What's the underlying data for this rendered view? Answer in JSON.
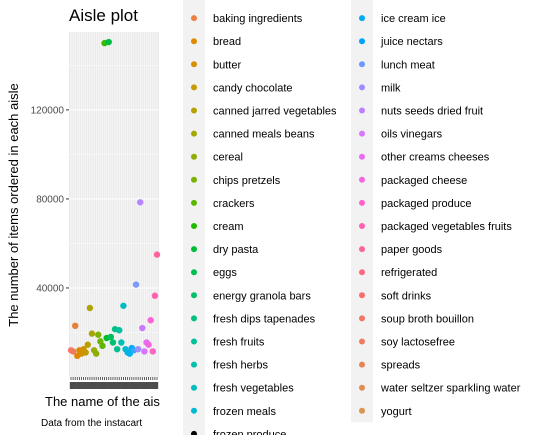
{
  "chart_data": {
    "type": "scatter",
    "title": "Aisle plot",
    "xlabel": "The name of the ais",
    "ylabel": "The number of items ordered in each aisle",
    "caption": "Data from the instacart",
    "yticks": [
      40000,
      80000,
      120000
    ],
    "ytick_labels": [
      "40000",
      "80000",
      "120000"
    ],
    "ylim": [
      0,
      155000
    ],
    "grid": true,
    "panel_background": "#EBEBEB",
    "legend_position": "right",
    "legend_columns": [
      [
        "",
        "baking ingredients",
        "bread",
        "butter",
        "candy chocolate",
        "canned jarred vegetables",
        "canned meals beans",
        "cereal",
        "chips pretzels",
        "crackers",
        "cream",
        "dry pasta",
        "eggs",
        "energy granola bars",
        "fresh dips tapenades",
        "fresh fruits",
        "fresh herbs",
        "fresh vegetables",
        "frozen meals",
        "frozen produce"
      ],
      [
        "",
        "ice cream ice",
        "juice nectars",
        "lunch meat",
        "milk",
        "nuts seeds dried fruit",
        "oils vinegars",
        "other creams cheeses",
        "packaged cheese",
        "packaged produce",
        "packaged vegetables fruits",
        "paper goods",
        "refrigerated",
        "soft drinks",
        "soup broth bouillon",
        "soy lactosefree",
        "spreads",
        "water seltzer sparkling water",
        "yogurt"
      ]
    ],
    "legend_colors": [
      [
        "#F8766D",
        "#EE7F43",
        "#E38900",
        "#D59100",
        "#C79A00",
        "#B7A100",
        "#A4A800",
        "#8FAD00",
        "#77B300",
        "#59B700",
        "#20BA00",
        "#00BD33",
        "#00BF51",
        "#00C06A",
        "#00C081",
        "#00C097",
        "#00BFAC",
        "#00BDC0",
        "#00B9D2"
      ],
      [
        "#00B2E4",
        "#00ABF3",
        "#00A3FF",
        "#6A99FF",
        "#9C8DFF",
        "#BF80FF",
        "#D876FF",
        "#EB6CF0",
        "#F866DD",
        "#FF63C7",
        "#FF61B0",
        "#FF6498",
        "#FF6880",
        "#FB6D69",
        "#F57563",
        "#EE7D5D",
        "#E78557",
        "#E08D51",
        "#D9954B"
      ]
    ],
    "points": [
      {
        "x": 1,
        "y": 12000,
        "color": "#F8766D"
      },
      {
        "x": 2,
        "y": 11500,
        "color": "#F07A5A"
      },
      {
        "x": 3,
        "y": 23000,
        "color": "#E88038"
      },
      {
        "x": 4,
        "y": 9500,
        "color": "#E38600"
      },
      {
        "x": 5,
        "y": 12000,
        "color": "#DC8A00"
      },
      {
        "x": 6,
        "y": 10500,
        "color": "#D49000"
      },
      {
        "x": 7,
        "y": 12500,
        "color": "#CC9500"
      },
      {
        "x": 8,
        "y": 11000,
        "color": "#C49A00"
      },
      {
        "x": 9,
        "y": 14500,
        "color": "#BB9E00"
      },
      {
        "x": 10,
        "y": 31000,
        "color": "#B0A200"
      },
      {
        "x": 11,
        "y": 19500,
        "color": "#A5A700"
      },
      {
        "x": 12,
        "y": 12000,
        "color": "#99AB00"
      },
      {
        "x": 13,
        "y": 10500,
        "color": "#8CAE00"
      },
      {
        "x": 14,
        "y": 19000,
        "color": "#7EB100"
      },
      {
        "x": 15,
        "y": 16000,
        "color": "#6EB400"
      },
      {
        "x": 16,
        "y": 14000,
        "color": "#5CB700"
      },
      {
        "x": 17,
        "y": 150000,
        "color": "#3CB900"
      },
      {
        "x": 18,
        "y": 17500,
        "color": "#00BB2A"
      },
      {
        "x": 19,
        "y": 150500,
        "color": "#00BD44"
      },
      {
        "x": 20,
        "y": 18000,
        "color": "#00BE5A"
      },
      {
        "x": 21,
        "y": 15500,
        "color": "#00BF6E"
      },
      {
        "x": 22,
        "y": 21500,
        "color": "#00C080"
      },
      {
        "x": 23,
        "y": 12500,
        "color": "#00C091"
      },
      {
        "x": 24,
        "y": 21000,
        "color": "#00C0A2"
      },
      {
        "x": 25,
        "y": 15500,
        "color": "#00BFB3"
      },
      {
        "x": 26,
        "y": 32000,
        "color": "#00BDC3"
      },
      {
        "x": 27,
        "y": 12500,
        "color": "#00BAD2"
      },
      {
        "x": 28,
        "y": 11000,
        "color": "#00B6E1"
      },
      {
        "x": 29,
        "y": 10500,
        "color": "#00B1EE"
      },
      {
        "x": 30,
        "y": 13000,
        "color": "#00ABF9"
      },
      {
        "x": 31,
        "y": 12000,
        "color": "#3AA3FF"
      },
      {
        "x": 32,
        "y": 41500,
        "color": "#7F9AFF"
      },
      {
        "x": 33,
        "y": 12500,
        "color": "#9E90FF"
      },
      {
        "x": 34,
        "y": 78500,
        "color": "#B685FF"
      },
      {
        "x": 35,
        "y": 22000,
        "color": "#C97BFF"
      },
      {
        "x": 36,
        "y": 11500,
        "color": "#DA72FB"
      },
      {
        "x": 37,
        "y": 15500,
        "color": "#E76CF0"
      },
      {
        "x": 38,
        "y": 14500,
        "color": "#F267E3"
      },
      {
        "x": 39,
        "y": 25500,
        "color": "#FA64D4"
      },
      {
        "x": 40,
        "y": 11500,
        "color": "#FE62C3"
      },
      {
        "x": 41,
        "y": 36500,
        "color": "#FF62B1"
      },
      {
        "x": 42,
        "y": 55000,
        "color": "#FF649E"
      }
    ],
    "x_count": 42
  }
}
